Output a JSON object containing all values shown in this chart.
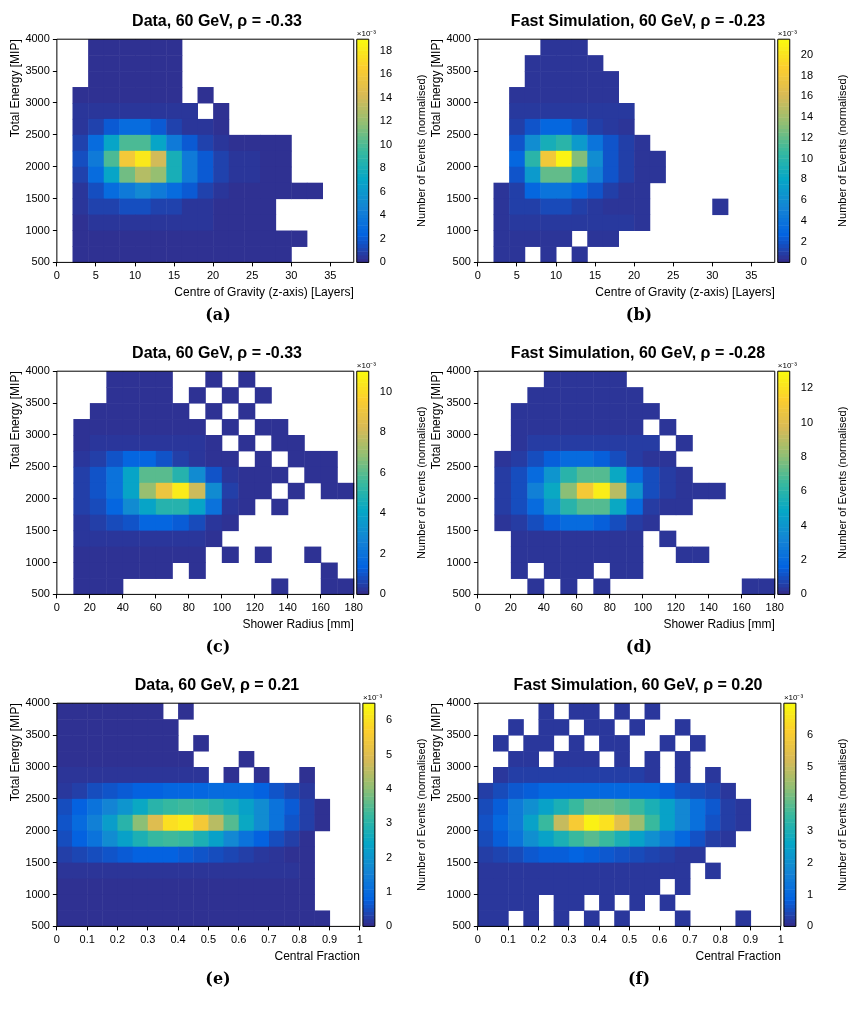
{
  "chart_data": [
    {
      "type": "heatmap",
      "title": "Data, 60 GeV, ρ = -0.33",
      "xlabel": "Centre of Gravity (z-axis) [Layers]",
      "ylabel": "Total Energy [MIP]",
      "clabel": "Number of Events (normalised)",
      "annotations": [
        "×10⁻³",
        "(a)"
      ],
      "x": [
        1,
        3,
        5,
        7,
        9,
        11,
        13,
        15,
        17,
        19,
        21,
        23,
        25,
        27,
        29,
        31,
        33,
        35,
        37
      ],
      "y": [
        3875,
        3625,
        3375,
        3125,
        2875,
        2625,
        2375,
        2125,
        1875,
        1625,
        1375,
        1125,
        875,
        625
      ],
      "xlim": [
        0,
        38
      ],
      "xticks": [
        0,
        5,
        10,
        15,
        20,
        25,
        30,
        35
      ],
      "ylim": [
        500,
        4000
      ],
      "yticks": [
        500,
        1000,
        1500,
        2000,
        2500,
        3000,
        3500,
        4000
      ],
      "clim": [
        0,
        19
      ],
      "cticks": [
        0,
        2,
        4,
        6,
        8,
        10,
        12,
        14,
        16,
        18
      ],
      "cells": [
        [
          null,
          null,
          0.3,
          0.3,
          0.3,
          0.3,
          0.3,
          0.3,
          null,
          null,
          null,
          null,
          null,
          null,
          null,
          null,
          null,
          null,
          null
        ],
        [
          null,
          null,
          0.3,
          0.3,
          0.3,
          0.3,
          0.3,
          0.3,
          null,
          null,
          null,
          null,
          null,
          null,
          null,
          null,
          null,
          null,
          null
        ],
        [
          null,
          null,
          0.3,
          0.3,
          0.3,
          0.3,
          0.3,
          0.3,
          null,
          null,
          null,
          null,
          null,
          null,
          null,
          null,
          null,
          null,
          null
        ],
        [
          null,
          0.3,
          0.3,
          0.3,
          0.3,
          0.3,
          0.3,
          0.3,
          null,
          0.3,
          null,
          null,
          null,
          null,
          null,
          null,
          null,
          null,
          null
        ],
        [
          null,
          0.5,
          0.5,
          0.5,
          0.5,
          0.5,
          0.5,
          0.5,
          0.5,
          null,
          0.3,
          null,
          null,
          null,
          null,
          null,
          null,
          null,
          null
        ],
        [
          null,
          0.5,
          1,
          2,
          3,
          3,
          2,
          1,
          0.5,
          0.5,
          0.3,
          null,
          null,
          null,
          null,
          null,
          null,
          null,
          null
        ],
        [
          null,
          1,
          3,
          7,
          10,
          10,
          7,
          4,
          2,
          1,
          0.5,
          0.3,
          0.3,
          0.3,
          0.3,
          null,
          null,
          null,
          null
        ],
        [
          null,
          1.5,
          4,
          10,
          16,
          18,
          14,
          8,
          4,
          2,
          1,
          0.5,
          0.5,
          0.3,
          0.3,
          null,
          null,
          null,
          null
        ],
        [
          null,
          1,
          3,
          7,
          11,
          13,
          12,
          8,
          4,
          2,
          1,
          0.5,
          0.5,
          0.3,
          0.3,
          null,
          null,
          null,
          null
        ],
        [
          null,
          0.5,
          1.5,
          3,
          4,
          5,
          4,
          3,
          2,
          1,
          0.5,
          0.3,
          0.3,
          0.3,
          0.3,
          0.3,
          0.3,
          null,
          null
        ],
        [
          null,
          0.5,
          1,
          1,
          1.5,
          1.5,
          1,
          1,
          0.5,
          0.5,
          0.3,
          0.3,
          0.3,
          0.3,
          null,
          null,
          null,
          null,
          null
        ],
        [
          null,
          0.3,
          0.5,
          0.5,
          0.5,
          0.5,
          0.5,
          0.5,
          0.5,
          0.5,
          0.3,
          0.3,
          0.3,
          0.3,
          null,
          null,
          null,
          null,
          null
        ],
        [
          null,
          0.3,
          0.3,
          0.3,
          0.3,
          0.3,
          0.3,
          0.3,
          0.3,
          0.3,
          0.3,
          0.3,
          0.3,
          0.3,
          0.3,
          0.3,
          null,
          null,
          null
        ],
        [
          null,
          0.3,
          0.3,
          0.3,
          0.3,
          0.3,
          0.3,
          0.3,
          0.3,
          0.3,
          0.3,
          0.3,
          0.3,
          0.3,
          0.3,
          null,
          null,
          null,
          null
        ]
      ]
    },
    {
      "type": "heatmap",
      "title": "Fast Simulation, 60 GeV, ρ = -0.23",
      "xlabel": "Centre of Gravity (z-axis) [Layers]",
      "ylabel": "Total Energy [MIP]",
      "clabel": "Number of Events (normalised)",
      "annotations": [
        "×10⁻³",
        "(b)"
      ],
      "x": [
        1,
        3,
        5,
        7,
        9,
        11,
        13,
        15,
        17,
        19,
        21,
        23,
        25,
        27,
        29,
        31,
        33,
        35,
        37
      ],
      "y": [
        3875,
        3625,
        3375,
        3125,
        2875,
        2625,
        2375,
        2125,
        1875,
        1625,
        1375,
        1125,
        875,
        625
      ],
      "xlim": [
        0,
        38
      ],
      "xticks": [
        0,
        5,
        10,
        15,
        20,
        25,
        30,
        35
      ],
      "ylim": [
        500,
        4000
      ],
      "yticks": [
        500,
        1000,
        1500,
        2000,
        2500,
        3000,
        3500,
        4000
      ],
      "clim": [
        0,
        21.5
      ],
      "cticks": [
        0,
        2,
        4,
        6,
        8,
        10,
        12,
        14,
        16,
        18,
        20
      ],
      "cells": [
        [
          null,
          null,
          null,
          null,
          0.5,
          0.5,
          0.5,
          null,
          null,
          null,
          null,
          null,
          null,
          null,
          null,
          null,
          null,
          null,
          null
        ],
        [
          null,
          null,
          null,
          0.5,
          0.5,
          0.5,
          0.5,
          0.5,
          null,
          null,
          null,
          null,
          null,
          null,
          null,
          null,
          null,
          null,
          null
        ],
        [
          null,
          null,
          null,
          0.5,
          0.5,
          0.5,
          0.5,
          0.5,
          0.5,
          null,
          null,
          null,
          null,
          null,
          null,
          null,
          null,
          null,
          null
        ],
        [
          null,
          null,
          0.5,
          0.5,
          0.5,
          0.5,
          0.5,
          0.5,
          0.5,
          null,
          null,
          null,
          null,
          null,
          null,
          null,
          null,
          null,
          null
        ],
        [
          null,
          null,
          0.7,
          0.7,
          0.7,
          0.7,
          0.7,
          0.7,
          0.7,
          0.7,
          null,
          null,
          null,
          null,
          null,
          null,
          null,
          null,
          null
        ],
        [
          null,
          null,
          1,
          2,
          3,
          3,
          2,
          1,
          0.7,
          0.5,
          null,
          null,
          null,
          null,
          null,
          null,
          null,
          null,
          null
        ],
        [
          null,
          null,
          2,
          6,
          9,
          10,
          7,
          4,
          2,
          1,
          0.5,
          null,
          null,
          null,
          null,
          null,
          null,
          null,
          null
        ],
        [
          null,
          null,
          3,
          10,
          18,
          21,
          13,
          6,
          2,
          1,
          0.5,
          0.5,
          null,
          null,
          null,
          null,
          null,
          null,
          null
        ],
        [
          null,
          null,
          2,
          7,
          12,
          12,
          9,
          5,
          2,
          1,
          0.5,
          0.5,
          null,
          null,
          null,
          null,
          null,
          null,
          null
        ],
        [
          null,
          0.5,
          1,
          3,
          4,
          4,
          3,
          2,
          1,
          0.5,
          0.5,
          null,
          null,
          null,
          null,
          null,
          null,
          null,
          null
        ],
        [
          null,
          0.5,
          1,
          1,
          1.5,
          1.5,
          1,
          0.7,
          0.5,
          0.5,
          0.5,
          null,
          null,
          null,
          null,
          0.5,
          null,
          null,
          null
        ],
        [
          null,
          0.5,
          0.7,
          0.7,
          0.7,
          0.7,
          0.7,
          0.7,
          0.7,
          0.7,
          0.5,
          null,
          null,
          null,
          null,
          null,
          null,
          null,
          null
        ],
        [
          null,
          0.5,
          0.5,
          0.5,
          0.5,
          0.5,
          null,
          0.5,
          0.5,
          null,
          null,
          null,
          null,
          null,
          null,
          null,
          null,
          null,
          null
        ],
        [
          null,
          0.5,
          0.5,
          null,
          0.5,
          null,
          0.5,
          null,
          null,
          null,
          null,
          null,
          null,
          null,
          null,
          null,
          null,
          null,
          null
        ]
      ]
    },
    {
      "type": "heatmap",
      "title": "Data, 60 GeV, ρ = -0.33",
      "xlabel": "Shower Radius [mm]",
      "ylabel": "Total Energy [MIP]",
      "clabel": "Number of Events (normalised)",
      "annotations": [
        "×10⁻³",
        "(c)"
      ],
      "x": [
        5,
        15,
        25,
        35,
        45,
        55,
        65,
        75,
        85,
        95,
        105,
        115,
        125,
        135,
        145,
        155,
        165,
        175
      ],
      "y": [
        3875,
        3625,
        3375,
        3125,
        2875,
        2625,
        2375,
        2125,
        1875,
        1625,
        1375,
        1125,
        875,
        625
      ],
      "xlim": [
        0,
        180
      ],
      "xticks": [
        0,
        20,
        40,
        60,
        80,
        100,
        120,
        140,
        160,
        180
      ],
      "ylim": [
        500,
        4000
      ],
      "yticks": [
        500,
        1000,
        1500,
        2000,
        2500,
        3000,
        3500,
        4000
      ],
      "clim": [
        0,
        11
      ],
      "cticks": [
        0,
        2,
        4,
        6,
        8,
        10
      ],
      "cells": [
        [
          null,
          null,
          null,
          0.2,
          0.2,
          0.2,
          0.2,
          null,
          null,
          0.2,
          null,
          0.2,
          null,
          null,
          null,
          null,
          null,
          null
        ],
        [
          null,
          null,
          null,
          0.2,
          0.2,
          0.2,
          0.2,
          null,
          0.2,
          null,
          0.2,
          null,
          0.2,
          null,
          null,
          null,
          null,
          null
        ],
        [
          null,
          null,
          0.2,
          0.2,
          0.2,
          0.2,
          0.2,
          0.2,
          null,
          0.2,
          null,
          0.2,
          null,
          null,
          null,
          null,
          null,
          null
        ],
        [
          null,
          0.2,
          0.2,
          0.2,
          0.2,
          0.2,
          0.2,
          0.2,
          0.2,
          null,
          0.2,
          null,
          0.2,
          0.2,
          null,
          null,
          null,
          null
        ],
        [
          null,
          0.2,
          0.3,
          0.3,
          0.3,
          0.3,
          0.3,
          0.3,
          0.3,
          0.2,
          null,
          0.2,
          null,
          0.2,
          0.2,
          null,
          null,
          null
        ],
        [
          null,
          0.3,
          0.5,
          1,
          1.5,
          1.5,
          1,
          0.5,
          0.3,
          0.2,
          0.2,
          null,
          0.2,
          null,
          0.2,
          0.2,
          0.2,
          null
        ],
        [
          null,
          0.5,
          1,
          2,
          4,
          6,
          6,
          5,
          3,
          1,
          0.3,
          0.2,
          0.2,
          0.2,
          null,
          0.2,
          0.2,
          null
        ],
        [
          null,
          0.5,
          1,
          2,
          4,
          7,
          9,
          10.5,
          8,
          3,
          0.5,
          0.2,
          0.2,
          null,
          0.2,
          null,
          0.2,
          0.2
        ],
        [
          null,
          0.5,
          0.8,
          1.5,
          3,
          4,
          5,
          5,
          4,
          2,
          0.3,
          0.2,
          null,
          0.2,
          null,
          null,
          null,
          null
        ],
        [
          null,
          0.3,
          0.5,
          0.8,
          1,
          1.5,
          1.5,
          1.2,
          0.8,
          0.3,
          0.2,
          null,
          null,
          null,
          null,
          null,
          null,
          null
        ],
        [
          null,
          0.3,
          0.3,
          0.3,
          0.3,
          0.3,
          0.3,
          0.3,
          0.3,
          0.2,
          null,
          null,
          null,
          null,
          null,
          null,
          null,
          null
        ],
        [
          null,
          0.2,
          0.2,
          0.2,
          0.2,
          0.2,
          0.2,
          0.2,
          0.2,
          null,
          0.2,
          null,
          0.2,
          null,
          null,
          0.2,
          null,
          null
        ],
        [
          null,
          0.2,
          0.2,
          0.2,
          0.2,
          0.2,
          0.2,
          null,
          0.2,
          null,
          null,
          null,
          null,
          null,
          null,
          null,
          0.2,
          null
        ],
        [
          null,
          0.2,
          0.2,
          0.2,
          null,
          null,
          null,
          null,
          null,
          null,
          null,
          null,
          null,
          0.2,
          null,
          null,
          0.2,
          0.2
        ]
      ]
    },
    {
      "type": "heatmap",
      "title": "Fast Simulation, 60 GeV, ρ = -0.28",
      "xlabel": "Shower Radius [mm]",
      "ylabel": "Total Energy [MIP]",
      "clabel": "Number of Events (normalised)",
      "annotations": [
        "×10⁻³",
        "(d)"
      ],
      "x": [
        5,
        15,
        25,
        35,
        45,
        55,
        65,
        75,
        85,
        95,
        105,
        115,
        125,
        135,
        145,
        155,
        165,
        175
      ],
      "y": [
        3875,
        3625,
        3375,
        3125,
        2875,
        2625,
        2375,
        2125,
        1875,
        1625,
        1375,
        1125,
        875,
        625
      ],
      "xlim": [
        0,
        180
      ],
      "xticks": [
        0,
        20,
        40,
        60,
        80,
        100,
        120,
        140,
        160,
        180
      ],
      "ylim": [
        500,
        4000
      ],
      "yticks": [
        500,
        1000,
        1500,
        2000,
        2500,
        3000,
        3500,
        4000
      ],
      "clim": [
        0,
        13
      ],
      "cticks": [
        0,
        2,
        4,
        6,
        8,
        10,
        12
      ],
      "cells": [
        [
          null,
          null,
          null,
          null,
          0.3,
          0.3,
          0.3,
          0.3,
          0.3,
          null,
          null,
          null,
          null,
          null,
          null,
          null,
          null,
          null
        ],
        [
          null,
          null,
          null,
          0.3,
          0.3,
          0.3,
          0.3,
          0.3,
          0.3,
          0.3,
          null,
          null,
          null,
          null,
          null,
          null,
          null,
          null
        ],
        [
          null,
          null,
          0.3,
          0.3,
          0.3,
          0.3,
          0.3,
          0.3,
          0.3,
          0.3,
          0.3,
          null,
          null,
          null,
          null,
          null,
          null,
          null
        ],
        [
          null,
          null,
          0.3,
          0.3,
          0.3,
          0.3,
          0.3,
          0.3,
          0.3,
          0.3,
          null,
          0.3,
          null,
          null,
          null,
          null,
          null,
          null
        ],
        [
          null,
          null,
          0.3,
          0.5,
          0.5,
          0.5,
          0.5,
          0.5,
          0.5,
          0.5,
          0.5,
          null,
          0.3,
          null,
          null,
          null,
          null,
          null
        ],
        [
          null,
          0.3,
          0.5,
          1,
          1.5,
          2,
          2,
          1.5,
          1,
          0.5,
          0.3,
          0.3,
          null,
          null,
          null,
          null,
          null,
          null
        ],
        [
          null,
          0.5,
          1,
          2,
          4,
          6,
          7,
          7,
          5,
          2,
          1,
          0.5,
          0.3,
          null,
          null,
          null,
          null,
          null
        ],
        [
          null,
          0.5,
          1,
          3,
          5,
          8,
          11,
          12.5,
          9,
          4,
          1,
          0.5,
          0.3,
          0.3,
          0.3,
          null,
          null,
          null
        ],
        [
          null,
          0.5,
          1,
          2,
          4,
          6,
          7,
          7,
          5,
          2,
          0.5,
          0.3,
          0.3,
          null,
          null,
          null,
          null,
          null
        ],
        [
          null,
          0.3,
          0.5,
          1,
          1.5,
          2,
          2,
          1.5,
          1,
          0.5,
          0.3,
          null,
          null,
          null,
          null,
          null,
          null,
          null
        ],
        [
          null,
          null,
          0.3,
          0.3,
          0.3,
          0.3,
          0.3,
          0.3,
          0.3,
          0.3,
          null,
          0.3,
          null,
          null,
          null,
          null,
          null,
          null
        ],
        [
          null,
          null,
          0.3,
          0.3,
          0.3,
          0.3,
          0.3,
          0.3,
          0.3,
          0.3,
          null,
          null,
          0.3,
          0.3,
          null,
          null,
          null,
          null
        ],
        [
          null,
          null,
          0.3,
          null,
          0.3,
          0.3,
          0.3,
          null,
          0.3,
          0.3,
          null,
          null,
          null,
          null,
          null,
          null,
          null,
          null
        ],
        [
          null,
          null,
          null,
          0.3,
          null,
          0.3,
          null,
          0.3,
          null,
          null,
          null,
          null,
          null,
          null,
          null,
          null,
          0.3,
          0.3
        ]
      ]
    },
    {
      "type": "heatmap",
      "title": "Data, 60 GeV, ρ = 0.21",
      "xlabel": "Central Fraction",
      "ylabel": "Total Energy [MIP]",
      "clabel": "Number of Events (normalised)",
      "annotations": [
        "×10⁻³",
        "(e)"
      ],
      "x": [
        0.025,
        0.075,
        0.125,
        0.175,
        0.225,
        0.275,
        0.325,
        0.375,
        0.425,
        0.475,
        0.525,
        0.575,
        0.625,
        0.675,
        0.725,
        0.775,
        0.825,
        0.875,
        0.925,
        0.975
      ],
      "y": [
        3875,
        3625,
        3375,
        3125,
        2875,
        2625,
        2375,
        2125,
        1875,
        1625,
        1375,
        1125,
        875,
        625
      ],
      "xlim": [
        0,
        1
      ],
      "xticks": [
        0,
        0.1,
        0.2,
        0.3,
        0.4,
        0.5,
        0.6,
        0.7,
        0.8,
        0.9,
        1
      ],
      "ylim": [
        500,
        4000
      ],
      "yticks": [
        500,
        1000,
        1500,
        2000,
        2500,
        3000,
        3500,
        4000
      ],
      "clim": [
        0,
        6.5
      ],
      "cticks": [
        0,
        1,
        2,
        3,
        4,
        5,
        6
      ],
      "cells": [
        [
          0.1,
          0.1,
          0.1,
          0.1,
          0.1,
          0.1,
          0.1,
          null,
          0.1,
          null,
          null,
          null,
          null,
          null,
          null,
          null,
          null,
          null,
          null,
          null
        ],
        [
          0.1,
          0.1,
          0.1,
          0.1,
          0.1,
          0.1,
          0.1,
          0.1,
          null,
          null,
          null,
          null,
          null,
          null,
          null,
          null,
          null,
          null,
          null,
          null
        ],
        [
          0.1,
          0.1,
          0.1,
          0.1,
          0.1,
          0.1,
          0.1,
          0.1,
          null,
          0.1,
          null,
          null,
          null,
          null,
          null,
          null,
          null,
          null,
          null,
          null
        ],
        [
          0.1,
          0.1,
          0.1,
          0.1,
          0.1,
          0.1,
          0.1,
          0.1,
          0.1,
          null,
          null,
          null,
          0.1,
          null,
          null,
          null,
          null,
          null,
          null,
          null
        ],
        [
          0.15,
          0.15,
          0.15,
          0.15,
          0.15,
          0.15,
          0.15,
          0.15,
          0.15,
          0.15,
          null,
          0.1,
          null,
          0.1,
          null,
          null,
          0.1,
          null,
          null,
          null
        ],
        [
          0.2,
          0.3,
          0.5,
          0.6,
          0.7,
          0.8,
          0.8,
          0.9,
          0.9,
          0.9,
          1,
          1,
          1,
          0.8,
          0.6,
          0.4,
          0.2,
          null,
          null,
          null
        ],
        [
          0.5,
          0.8,
          1.2,
          1.6,
          2,
          2.5,
          3,
          3.2,
          3.3,
          3.2,
          3,
          2.7,
          2.3,
          1.8,
          1.2,
          0.7,
          0.3,
          0.1,
          null,
          null
        ],
        [
          0.6,
          1,
          1.5,
          2.2,
          3,
          4,
          5,
          6,
          6.2,
          5.5,
          4.5,
          3.5,
          2.5,
          1.8,
          1.2,
          0.6,
          0.3,
          0.1,
          null,
          null
        ],
        [
          0.5,
          0.8,
          1.2,
          1.8,
          2.3,
          2.8,
          3.2,
          3.3,
          3.2,
          2.8,
          2.3,
          1.7,
          1.2,
          0.8,
          0.5,
          0.3,
          0.1,
          null,
          null,
          null
        ],
        [
          0.3,
          0.4,
          0.5,
          0.6,
          0.7,
          0.8,
          0.8,
          0.8,
          0.7,
          0.6,
          0.5,
          0.4,
          0.3,
          0.2,
          0.15,
          0.1,
          0.1,
          null,
          null,
          null
        ],
        [
          0.15,
          0.15,
          0.15,
          0.15,
          0.15,
          0.15,
          0.15,
          0.15,
          0.15,
          0.15,
          0.15,
          0.15,
          0.15,
          0.15,
          0.15,
          0.15,
          0.1,
          null,
          null,
          null
        ],
        [
          0.1,
          0.1,
          0.1,
          0.1,
          0.1,
          0.1,
          0.1,
          0.1,
          0.1,
          0.1,
          0.1,
          0.1,
          0.1,
          0.1,
          0.1,
          0.1,
          0.1,
          null,
          null,
          null
        ],
        [
          0.1,
          0.1,
          0.1,
          0.1,
          0.1,
          0.1,
          0.1,
          0.1,
          0.1,
          0.1,
          0.1,
          0.1,
          0.1,
          0.1,
          0.1,
          0.1,
          0.1,
          null,
          null,
          null
        ],
        [
          0.1,
          0.1,
          0.1,
          0.1,
          0.1,
          0.1,
          0.1,
          0.1,
          0.1,
          0.1,
          0.1,
          0.1,
          0.1,
          0.1,
          0.1,
          0.1,
          0.1,
          0.1,
          null,
          null
        ]
      ]
    },
    {
      "type": "heatmap",
      "title": "Fast Simulation, 60 GeV, ρ = 0.20",
      "xlabel": "Central Fraction",
      "ylabel": "Total Energy [MIP]",
      "clabel": "Number of Events (normalised)",
      "annotations": [
        "×10⁻³",
        "(f)"
      ],
      "x": [
        0.025,
        0.075,
        0.125,
        0.175,
        0.225,
        0.275,
        0.325,
        0.375,
        0.425,
        0.475,
        0.525,
        0.575,
        0.625,
        0.675,
        0.725,
        0.775,
        0.825,
        0.875,
        0.925,
        0.975
      ],
      "y": [
        3875,
        3625,
        3375,
        3125,
        2875,
        2625,
        2375,
        2125,
        1875,
        1625,
        1375,
        1125,
        875,
        625
      ],
      "xlim": [
        0,
        1
      ],
      "xticks": [
        0,
        0.1,
        0.2,
        0.3,
        0.4,
        0.5,
        0.6,
        0.7,
        0.8,
        0.9,
        1
      ],
      "ylim": [
        500,
        4000
      ],
      "yticks": [
        500,
        1000,
        1500,
        2000,
        2500,
        3000,
        3500,
        4000
      ],
      "clim": [
        0,
        7
      ],
      "cticks": [
        0,
        1,
        2,
        3,
        4,
        5,
        6
      ],
      "cells": [
        [
          null,
          null,
          null,
          null,
          0.2,
          null,
          0.2,
          0.2,
          null,
          0.2,
          null,
          0.2,
          null,
          null,
          null,
          null,
          null,
          null,
          null,
          null
        ],
        [
          null,
          null,
          0.2,
          null,
          0.2,
          0.2,
          null,
          0.2,
          0.2,
          null,
          0.2,
          null,
          null,
          0.2,
          null,
          null,
          null,
          null,
          null,
          null
        ],
        [
          null,
          0.2,
          null,
          0.2,
          0.2,
          null,
          0.2,
          null,
          0.2,
          0.2,
          null,
          null,
          0.2,
          null,
          0.2,
          null,
          null,
          null,
          null,
          null
        ],
        [
          null,
          null,
          0.2,
          0.2,
          null,
          0.2,
          0.2,
          0.2,
          null,
          0.2,
          null,
          0.2,
          null,
          0.2,
          null,
          null,
          null,
          null,
          null,
          null
        ],
        [
          null,
          0.2,
          0.3,
          0.3,
          0.3,
          0.3,
          0.3,
          0.3,
          0.3,
          0.3,
          0.3,
          0.2,
          null,
          0.2,
          null,
          0.2,
          null,
          null,
          null,
          null
        ],
        [
          0.3,
          0.5,
          0.7,
          0.8,
          1,
          1,
          1,
          1,
          1,
          1,
          1,
          1,
          0.8,
          0.6,
          0.5,
          0.4,
          0.2,
          null,
          null,
          null
        ],
        [
          0.5,
          0.8,
          1.5,
          2,
          2.5,
          3,
          3.5,
          4,
          4,
          3.8,
          3.5,
          3,
          2.5,
          1.8,
          1.2,
          0.7,
          0.3,
          0.2,
          null,
          null
        ],
        [
          0.6,
          1,
          1.5,
          2.5,
          3.5,
          5,
          6,
          6.8,
          6.5,
          5.5,
          4.5,
          3.5,
          2.5,
          1.8,
          1.2,
          0.6,
          0.3,
          0.2,
          null,
          null
        ],
        [
          0.5,
          0.8,
          1.3,
          2,
          2.5,
          3,
          3.5,
          3.8,
          3.5,
          3,
          2.5,
          2,
          1.5,
          1,
          0.6,
          0.3,
          0.2,
          null,
          null,
          null
        ],
        [
          0.3,
          0.4,
          0.5,
          0.7,
          0.8,
          0.8,
          0.9,
          0.8,
          0.7,
          0.6,
          0.5,
          0.4,
          0.3,
          0.2,
          0.2,
          null,
          null,
          null,
          null,
          null
        ],
        [
          0.2,
          0.2,
          0.2,
          0.2,
          0.2,
          0.2,
          0.2,
          0.2,
          0.2,
          0.2,
          0.2,
          0.2,
          0.2,
          0.2,
          null,
          0.2,
          null,
          null,
          null,
          null
        ],
        [
          0.2,
          0.2,
          0.2,
          0.2,
          0.2,
          0.2,
          0.2,
          0.2,
          0.2,
          0.2,
          0.2,
          0.2,
          null,
          0.2,
          null,
          null,
          null,
          null,
          null,
          null
        ],
        [
          0.2,
          0.2,
          0.2,
          0.2,
          null,
          0.2,
          0.2,
          null,
          0.2,
          null,
          0.2,
          null,
          0.2,
          null,
          null,
          null,
          null,
          null,
          null,
          null
        ],
        [
          0.2,
          0.2,
          null,
          0.2,
          null,
          0.2,
          null,
          0.2,
          null,
          0.2,
          null,
          null,
          null,
          0.2,
          null,
          null,
          null,
          0.2,
          null,
          null
        ]
      ]
    }
  ]
}
